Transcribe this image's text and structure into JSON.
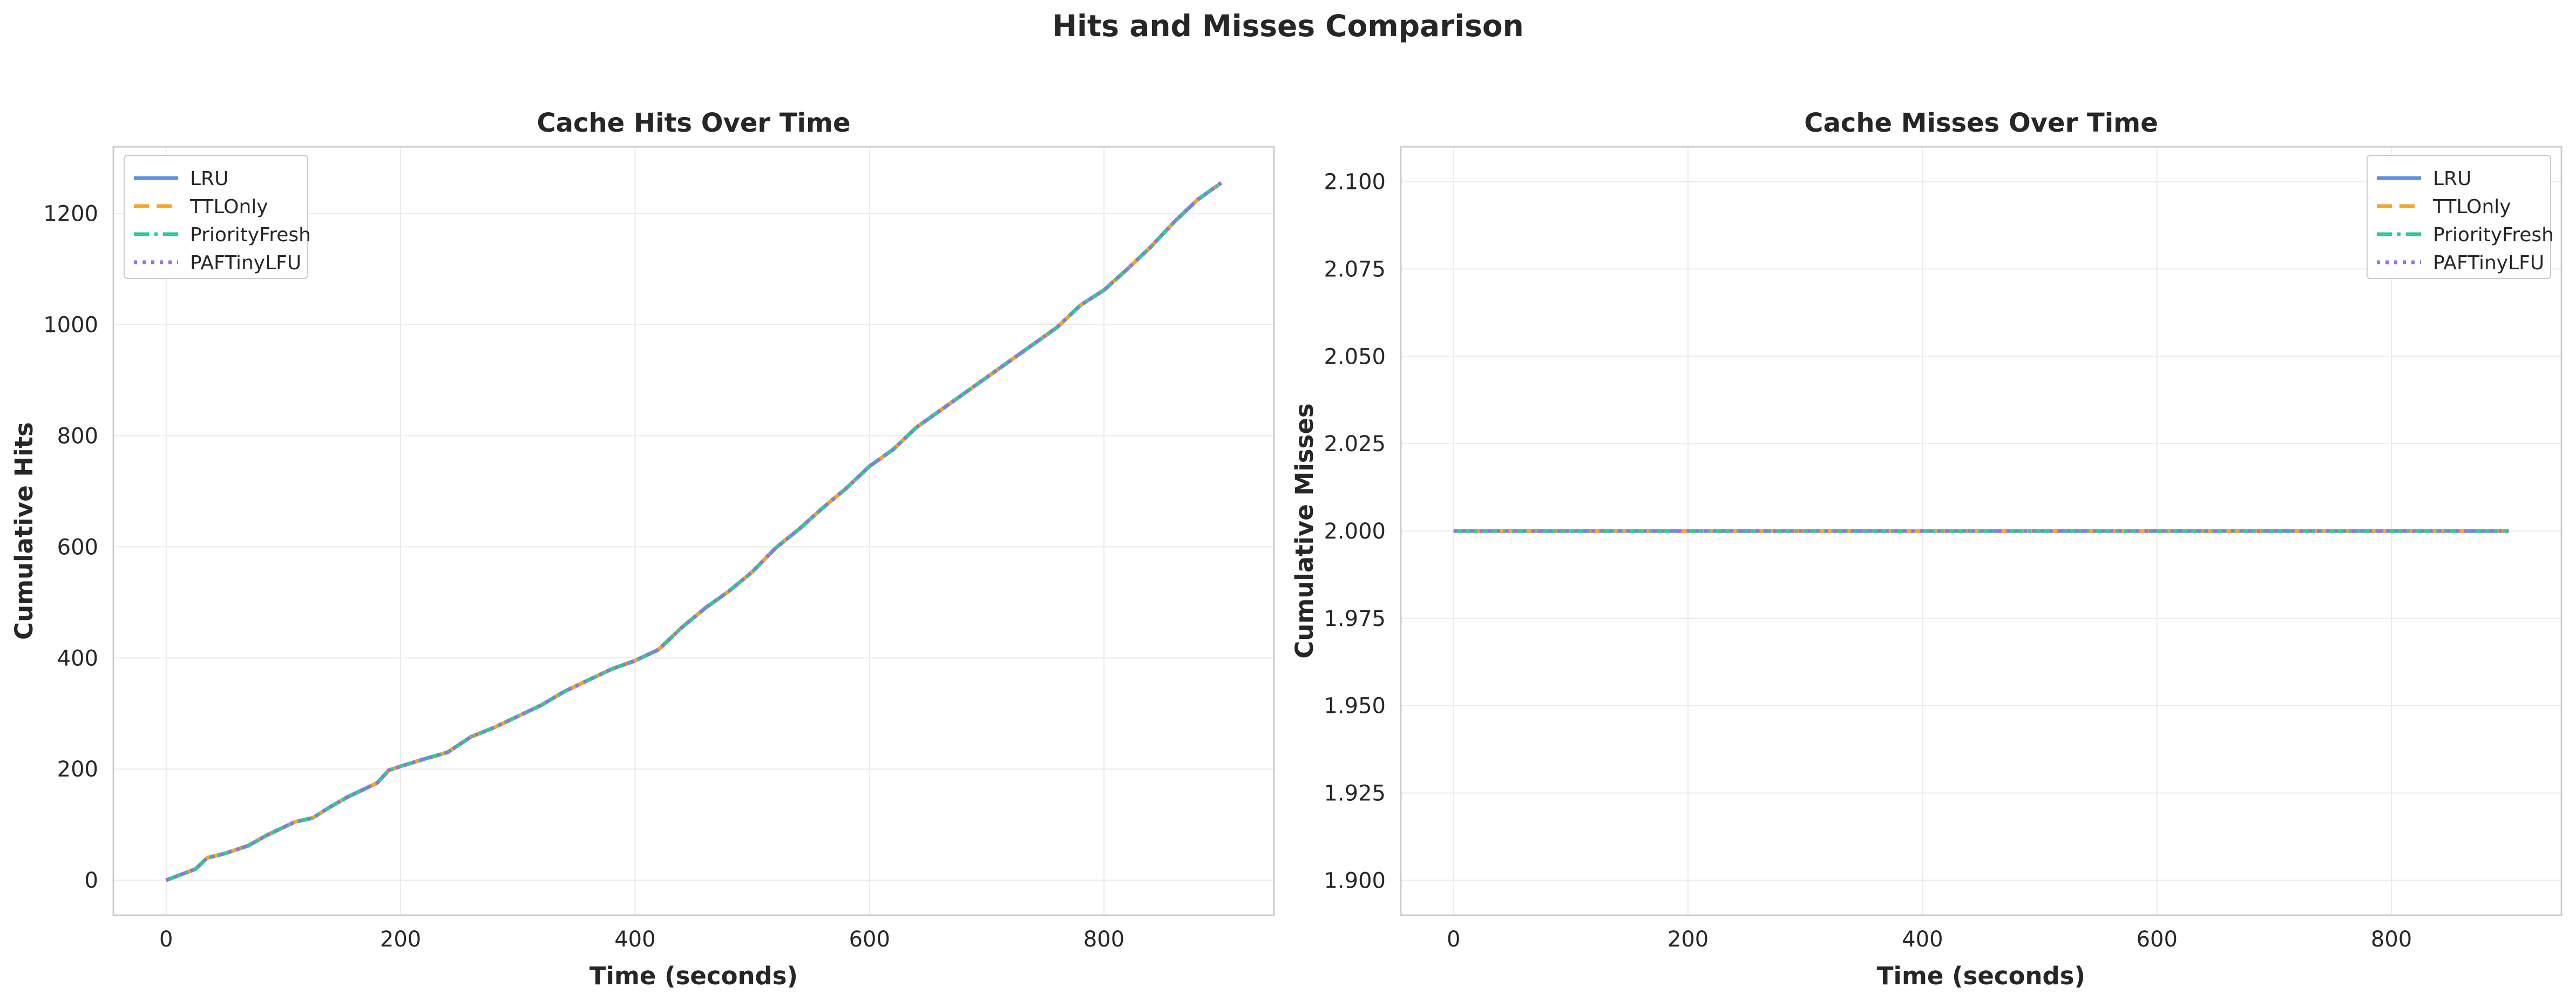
{
  "suptitle": "Hits and Misses Comparison",
  "colors": {
    "LRU": "#5b93e0",
    "TTLOnly": "#f5a623",
    "PriorityFresh": "#2ecc8f",
    "PAFTinyLFU": "#9b6fe0"
  },
  "chart_data": [
    {
      "type": "line",
      "title": "Cache Hits Over Time",
      "xlabel": "Time (seconds)",
      "ylabel": "Cumulative Hits",
      "xlim": [
        -45,
        945
      ],
      "ylim": [
        -63,
        1320
      ],
      "xticks": [
        0,
        200,
        400,
        600,
        800
      ],
      "yticks": [
        0,
        200,
        400,
        600,
        800,
        1000,
        1200
      ],
      "grid": true,
      "legend_position": "upper-left",
      "series": [
        {
          "name": "LRU",
          "style": "solid"
        },
        {
          "name": "TTLOnly",
          "style": "dashed"
        },
        {
          "name": "PriorityFresh",
          "style": "dashdot"
        },
        {
          "name": "PAFTinyLFU",
          "style": "dotted"
        }
      ],
      "x": [
        0,
        10,
        25,
        35,
        50,
        70,
        85,
        100,
        110,
        125,
        140,
        155,
        165,
        180,
        190,
        200,
        220,
        240,
        260,
        280,
        300,
        320,
        340,
        360,
        380,
        400,
        420,
        440,
        460,
        480,
        500,
        520,
        540,
        560,
        580,
        600,
        620,
        640,
        660,
        680,
        700,
        720,
        740,
        760,
        780,
        800,
        820,
        840,
        860,
        880,
        900
      ],
      "values": [
        0,
        8,
        20,
        40,
        48,
        62,
        80,
        95,
        105,
        112,
        132,
        150,
        160,
        175,
        198,
        205,
        218,
        230,
        258,
        275,
        295,
        315,
        340,
        360,
        380,
        395,
        415,
        455,
        490,
        520,
        555,
        598,
        632,
        670,
        705,
        745,
        775,
        815,
        845,
        875,
        905,
        935,
        965,
        995,
        1035,
        1062,
        1100,
        1140,
        1185,
        1225,
        1255
      ]
    },
    {
      "type": "line",
      "title": "Cache Misses Over Time",
      "xlabel": "Time (seconds)",
      "ylabel": "Cumulative Misses",
      "xlim": [
        -45,
        945
      ],
      "ylim": [
        1.89,
        2.11
      ],
      "xticks": [
        0,
        200,
        400,
        600,
        800
      ],
      "yticks": [
        1.9,
        1.925,
        1.95,
        1.975,
        2.0,
        2.025,
        2.05,
        2.075,
        2.1
      ],
      "ytick_labels": [
        "1.900",
        "1.925",
        "1.950",
        "1.975",
        "2.000",
        "2.025",
        "2.050",
        "2.075",
        "2.100"
      ],
      "grid": true,
      "legend_position": "upper-right",
      "series": [
        {
          "name": "LRU",
          "style": "solid"
        },
        {
          "name": "TTLOnly",
          "style": "dashed"
        },
        {
          "name": "PriorityFresh",
          "style": "dashdot"
        },
        {
          "name": "PAFTinyLFU",
          "style": "dotted"
        }
      ],
      "x": [
        0,
        900
      ],
      "values": [
        2.0,
        2.0
      ]
    }
  ]
}
